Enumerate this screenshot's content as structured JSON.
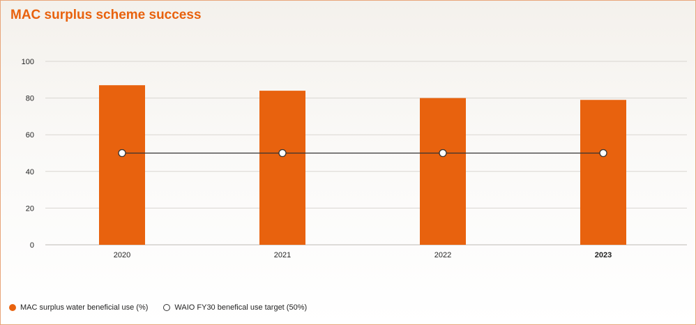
{
  "title": "MAC surplus scheme success",
  "colors": {
    "bar": "#e8620e",
    "title": "#e8620e",
    "target_line": "#333333",
    "grid": "#d9d6d1"
  },
  "chart_data": {
    "type": "bar",
    "title": "MAC surplus scheme success",
    "categories": [
      "2020",
      "2021",
      "2022",
      "2023"
    ],
    "highlighted_category": "2023",
    "series": [
      {
        "name": "MAC surplus water beneficial use (%)",
        "type": "bar",
        "values": [
          87,
          84,
          80,
          79
        ]
      },
      {
        "name": "WAIO FY30 benefical use target (50%)",
        "type": "line",
        "values": [
          50,
          50,
          50,
          50
        ]
      }
    ],
    "yticks": [
      0,
      20,
      40,
      60,
      80,
      100
    ],
    "ylim": [
      0,
      100
    ],
    "xlabel": "",
    "ylabel": "",
    "grid": true,
    "legend_position": "bottom-left"
  },
  "legend": {
    "bar_label": "MAC surplus water beneficial use (%)",
    "line_label": "WAIO FY30 benefical use target (50%)"
  }
}
